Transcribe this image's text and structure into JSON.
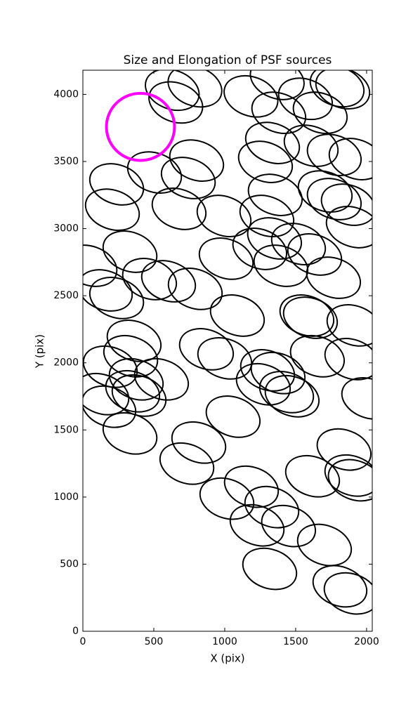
{
  "chart_data": {
    "type": "ellipse",
    "title": "Size and Elongation of PSF sources",
    "xlabel": "X (pix)",
    "ylabel": "Y (pix)",
    "xlim": [
      0,
      2040
    ],
    "ylim": [
      0,
      4180
    ],
    "xticks": [
      0,
      500,
      1000,
      1500,
      2000
    ],
    "yticks": [
      0,
      500,
      1000,
      1500,
      2000,
      2500,
      3000,
      3500,
      4000
    ],
    "sources": {
      "color": "#000000",
      "width": 390,
      "height": 290,
      "angle": -20,
      "x": [
        630,
        790,
        655,
        1185,
        1370,
        1381,
        1569,
        1673,
        1792,
        1832,
        1337,
        1609,
        1772,
        1926,
        1287,
        802,
        505,
        743,
        238,
        208,
        678,
        995,
        1356,
        1708,
        1772,
        1871,
        1297,
        1906,
        1351,
        1520,
        1247,
        1634,
        1010,
        1396,
        332,
        50,
        1767,
        470,
        604,
        792,
        158,
        238,
        1089,
        1579,
        1604,
        1911,
        361,
        871,
        337,
        1000,
        1653,
        1896,
        193,
        1302,
        1376,
        376,
        554,
        351,
        134,
        1272,
        1436,
        396,
        1475,
        183,
        2015,
        1059,
        332,
        817,
        733,
        1841,
        1188,
        1619,
        1896,
        1920,
        1015,
        1332,
        1228,
        1450,
        1703,
        1317,
        1812,
        1891
      ],
      "y": [
        4035,
        4060,
        3940,
        3985,
        4115,
        3863,
        3967,
        3863,
        4061,
        4046,
        3638,
        3617,
        3549,
        3518,
        3497,
        3507,
        3418,
        3377,
        3330,
        3141,
        3147,
        3094,
        3251,
        3277,
        3220,
        3178,
        3094,
        3011,
        2927,
        2885,
        2849,
        2807,
        2776,
        2723,
        2828,
        2723,
        2634,
        2624,
        2608,
        2551,
        2540,
        2483,
        2352,
        2352,
        2336,
        2279,
        2164,
        2101,
        2049,
        2033,
        2049,
        2028,
        1971,
        1944,
        1924,
        1877,
        1877,
        1788,
        1767,
        1840,
        1782,
        1756,
        1751,
        1673,
        1735,
        1599,
        1474,
        1406,
        1249,
        1354,
        1077,
        1155,
        1160,
        1125,
        988,
        925,
        789,
        784,
        643,
        465,
        335,
        282
      ]
    },
    "reference": {
      "color": "#ff00ff",
      "x": 406,
      "y": 3758,
      "width": 480,
      "height": 500
    }
  }
}
